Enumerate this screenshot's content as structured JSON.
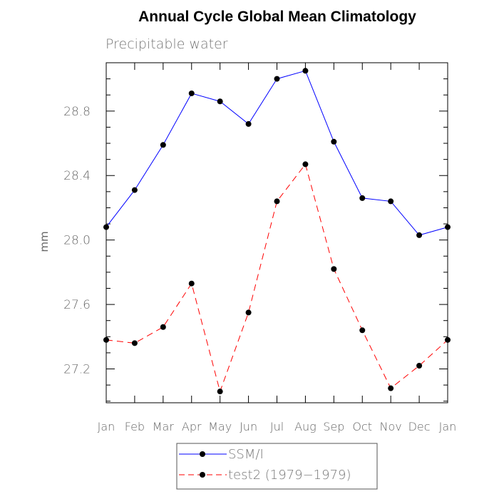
{
  "chart_data": {
    "type": "line",
    "title": "Annual Cycle Global Mean Climatology",
    "subtitle": "Precipitable water",
    "xlabel": "",
    "ylabel": "mm",
    "categories": [
      "Jan",
      "Feb",
      "Mar",
      "Apr",
      "May",
      "Jun",
      "Jul",
      "Aug",
      "Sep",
      "Oct",
      "Nov",
      "Dec",
      "Jan"
    ],
    "ylim": [
      26.99,
      29.1
    ],
    "yticks": [
      27.2,
      27.6,
      28.0,
      28.4,
      28.8
    ],
    "ytick_labels": [
      "27.2",
      "27.6",
      "28.0",
      "28.4",
      "28.8"
    ],
    "ytick_minor_step": 0.1,
    "grid": false,
    "legend_position": "bottom",
    "series": [
      {
        "name": "SSM/I",
        "color": "#0000ff",
        "dash": "solid",
        "marker": "circle",
        "values": [
          28.08,
          28.31,
          28.59,
          28.91,
          28.86,
          28.72,
          29.0,
          29.05,
          28.61,
          28.26,
          28.24,
          28.03,
          28.08
        ]
      },
      {
        "name": "test2 (1979−1979)",
        "color": "#ff0000",
        "dash": "dashed",
        "marker": "circle",
        "values": [
          27.38,
          27.36,
          27.46,
          27.73,
          27.06,
          27.55,
          28.24,
          28.47,
          27.82,
          27.44,
          27.08,
          27.22,
          27.38
        ]
      }
    ]
  }
}
